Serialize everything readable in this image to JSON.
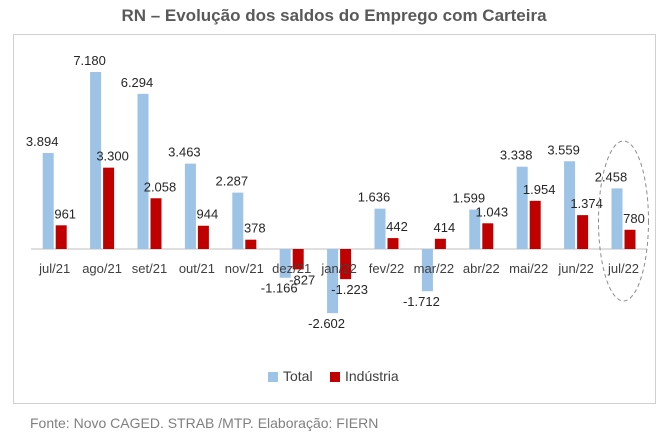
{
  "chart_data": {
    "type": "bar",
    "title": "RN – Evolução dos saldos do Emprego com Carteira",
    "categories": [
      "jul/21",
      "ago/21",
      "set/21",
      "out/21",
      "nov/21",
      "dez/21",
      "jan/22",
      "fev/22",
      "mar/22",
      "abr/22",
      "mai/22",
      "jun/22",
      "jul/22"
    ],
    "series": [
      {
        "name": "Total",
        "color": "#9dc3e6",
        "values": [
          3894,
          7180,
          6294,
          3463,
          2287,
          -1166,
          -2602,
          1636,
          -1712,
          1599,
          3338,
          3559,
          2458
        ],
        "labels": [
          "3.894",
          "7.180",
          "6.294",
          "3.463",
          "2.287",
          "-1.166",
          "-2.602",
          "1.636",
          "-1.712",
          "1.599",
          "3.338",
          "3.559",
          "2.458"
        ]
      },
      {
        "name": "Indústria",
        "color": "#c00000",
        "values": [
          961,
          3300,
          2058,
          944,
          378,
          -827,
          -1223,
          442,
          414,
          1043,
          1954,
          1374,
          780
        ],
        "labels": [
          "961",
          "3.300",
          "2.058",
          "944",
          "378",
          "-827",
          "-1.223",
          "442",
          "414",
          "1.043",
          "1.954",
          "1.374",
          "780"
        ]
      }
    ],
    "legend": "bottom",
    "highlight": "jul/22"
  },
  "footer": "Fonte: Novo CAGED. STRAB /MTP. Elaboração: FIERN"
}
